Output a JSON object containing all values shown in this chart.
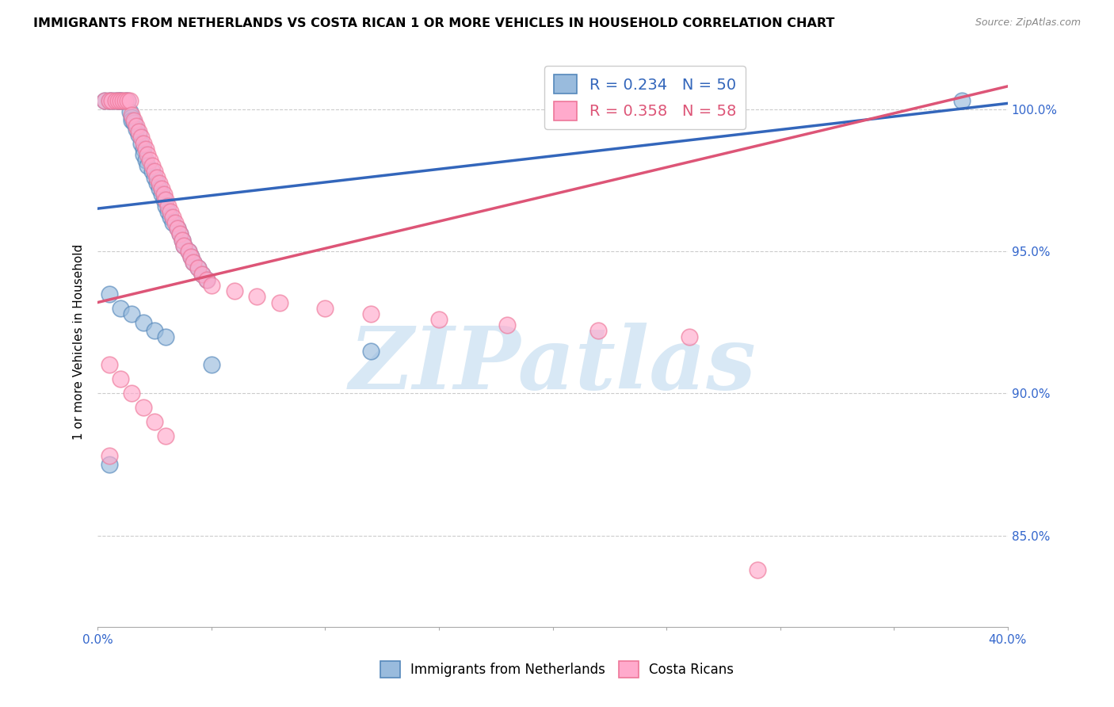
{
  "title": "IMMIGRANTS FROM NETHERLANDS VS COSTA RICAN 1 OR MORE VEHICLES IN HOUSEHOLD CORRELATION CHART",
  "source": "Source: ZipAtlas.com",
  "ylabel": "1 or more Vehicles in Household",
  "xlim": [
    0.0,
    0.4
  ],
  "ylim": [
    0.818,
    1.018
  ],
  "ytick_positions": [
    0.85,
    0.9,
    0.95,
    1.0
  ],
  "ytick_labels": [
    "85.0%",
    "90.0%",
    "95.0%",
    "100.0%"
  ],
  "blue_R": 0.234,
  "blue_N": 50,
  "pink_R": 0.358,
  "pink_N": 58,
  "blue_color": "#99BBDD",
  "pink_color": "#FFAACC",
  "blue_edge_color": "#5588BB",
  "pink_edge_color": "#EE7799",
  "blue_line_color": "#3366BB",
  "pink_line_color": "#DD5577",
  "watermark_text": "ZIPatlas",
  "watermark_color": "#DDEEFF",
  "legend_label_blue": "Immigrants from Netherlands",
  "legend_label_pink": "Costa Ricans",
  "blue_line_x": [
    0.0,
    0.4
  ],
  "blue_line_y": [
    0.965,
    1.002
  ],
  "pink_line_x": [
    0.0,
    0.4
  ],
  "pink_line_y": [
    0.932,
    1.008
  ],
  "blue_x": [
    0.003,
    0.005,
    0.006,
    0.008,
    0.009,
    0.01,
    0.01,
    0.012,
    0.013,
    0.014,
    0.015,
    0.015,
    0.016,
    0.017,
    0.018,
    0.019,
    0.02,
    0.02,
    0.021,
    0.022,
    0.024,
    0.025,
    0.026,
    0.027,
    0.028,
    0.029,
    0.03,
    0.031,
    0.032,
    0.033,
    0.035,
    0.036,
    0.037,
    0.038,
    0.04,
    0.041,
    0.042,
    0.044,
    0.046,
    0.048,
    0.005,
    0.01,
    0.015,
    0.02,
    0.025,
    0.03,
    0.05,
    0.12,
    0.38,
    0.005
  ],
  "blue_y": [
    1.003,
    1.003,
    1.003,
    1.003,
    1.003,
    1.003,
    1.003,
    1.003,
    1.003,
    0.999,
    0.997,
    0.996,
    0.995,
    0.993,
    0.991,
    0.988,
    0.986,
    0.984,
    0.982,
    0.98,
    0.978,
    0.976,
    0.974,
    0.972,
    0.97,
    0.968,
    0.966,
    0.964,
    0.962,
    0.96,
    0.958,
    0.956,
    0.954,
    0.952,
    0.95,
    0.948,
    0.946,
    0.944,
    0.942,
    0.94,
    0.935,
    0.93,
    0.928,
    0.925,
    0.922,
    0.92,
    0.91,
    0.915,
    1.003,
    0.875
  ],
  "pink_x": [
    0.003,
    0.005,
    0.006,
    0.008,
    0.009,
    0.01,
    0.011,
    0.012,
    0.013,
    0.014,
    0.015,
    0.016,
    0.017,
    0.018,
    0.019,
    0.02,
    0.021,
    0.022,
    0.023,
    0.024,
    0.025,
    0.026,
    0.027,
    0.028,
    0.029,
    0.03,
    0.031,
    0.032,
    0.033,
    0.034,
    0.035,
    0.036,
    0.037,
    0.038,
    0.04,
    0.041,
    0.042,
    0.044,
    0.046,
    0.048,
    0.05,
    0.06,
    0.07,
    0.08,
    0.1,
    0.12,
    0.15,
    0.18,
    0.22,
    0.26,
    0.005,
    0.01,
    0.015,
    0.02,
    0.025,
    0.03,
    0.005,
    0.29
  ],
  "pink_y": [
    1.003,
    1.003,
    1.003,
    1.003,
    1.003,
    1.003,
    1.003,
    1.003,
    1.003,
    1.003,
    0.998,
    0.996,
    0.994,
    0.992,
    0.99,
    0.988,
    0.986,
    0.984,
    0.982,
    0.98,
    0.978,
    0.976,
    0.974,
    0.972,
    0.97,
    0.968,
    0.966,
    0.964,
    0.962,
    0.96,
    0.958,
    0.956,
    0.954,
    0.952,
    0.95,
    0.948,
    0.946,
    0.944,
    0.942,
    0.94,
    0.938,
    0.936,
    0.934,
    0.932,
    0.93,
    0.928,
    0.926,
    0.924,
    0.922,
    0.92,
    0.91,
    0.905,
    0.9,
    0.895,
    0.89,
    0.885,
    0.878,
    0.838
  ]
}
